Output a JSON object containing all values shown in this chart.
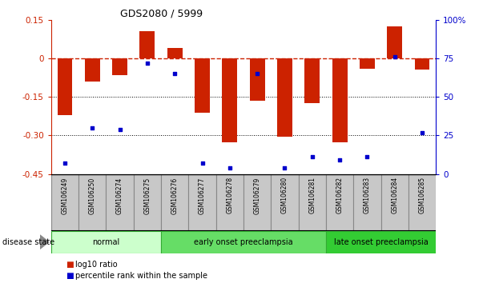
{
  "title": "GDS2080 / 5999",
  "samples": [
    "GSM106249",
    "GSM106250",
    "GSM106274",
    "GSM106275",
    "GSM106276",
    "GSM106277",
    "GSM106278",
    "GSM106279",
    "GSM106280",
    "GSM106281",
    "GSM106282",
    "GSM106283",
    "GSM106284",
    "GSM106285"
  ],
  "log10_ratio": [
    -0.22,
    -0.09,
    -0.065,
    0.105,
    0.04,
    -0.21,
    -0.325,
    -0.165,
    -0.305,
    -0.175,
    -0.325,
    -0.04,
    0.125,
    -0.045
  ],
  "percentile_rank": [
    7,
    30,
    29,
    72,
    65,
    7,
    4,
    65,
    4,
    11,
    9,
    11,
    76,
    27
  ],
  "groups": [
    {
      "label": "normal",
      "start": 0,
      "end": 3,
      "color": "#ccffcc"
    },
    {
      "label": "early onset preeclampsia",
      "start": 4,
      "end": 9,
      "color": "#66dd66"
    },
    {
      "label": "late onset preeclampsia",
      "start": 10,
      "end": 13,
      "color": "#33cc33"
    }
  ],
  "ylim_left": [
    -0.45,
    0.15
  ],
  "ylim_right": [
    0,
    100
  ],
  "bar_color": "#cc2200",
  "dot_color": "#0000cc",
  "dashed_line_color": "#cc2200",
  "label_bg_color": "#c8c8c8",
  "label_border_color": "#888888",
  "group_border_color": "#33aa33"
}
